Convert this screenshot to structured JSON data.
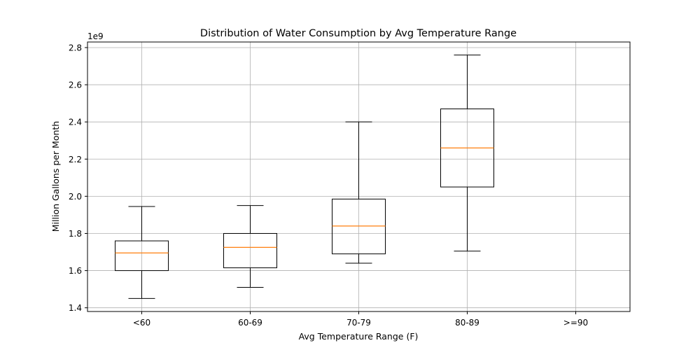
{
  "chart_data": {
    "type": "box",
    "title": "Distribution of Water Consumption by Avg Temperature Range",
    "xlabel": "Avg Temperature Range (F)",
    "ylabel": "Million Gallons per Month",
    "y_offset_label": "1e9",
    "y_scale": 1000000000,
    "ylim": [
      1.38,
      2.83
    ],
    "yticks": [
      1.4,
      1.6,
      1.8,
      2.0,
      2.2,
      2.4,
      2.6,
      2.8
    ],
    "ytick_labels": [
      "1.4",
      "1.6",
      "1.8",
      "2.0",
      "2.2",
      "2.4",
      "2.6",
      "2.8"
    ],
    "categories": [
      "<60",
      "60-69",
      "70-79",
      "80-89",
      ">=90"
    ],
    "grid": true,
    "boxes": [
      {
        "category": "<60",
        "whislo": 1.45,
        "q1": 1.6,
        "median": 1.695,
        "q3": 1.76,
        "whishi": 1.945
      },
      {
        "category": "60-69",
        "whislo": 1.51,
        "q1": 1.615,
        "median": 1.725,
        "q3": 1.8,
        "whishi": 1.95
      },
      {
        "category": "70-79",
        "whislo": 1.64,
        "q1": 1.69,
        "median": 1.84,
        "q3": 1.985,
        "whishi": 2.4
      },
      {
        "category": "80-89",
        "whislo": 1.705,
        "q1": 2.05,
        "median": 2.26,
        "q3": 2.47,
        "whishi": 2.76
      },
      {
        "category": ">=90"
      }
    ],
    "colors": {
      "box": "#000000",
      "median": "#ff7f0e",
      "grid": "#b0b0b0"
    }
  }
}
